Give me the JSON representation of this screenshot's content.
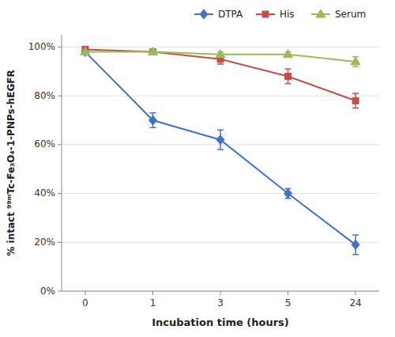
{
  "chart_data": {
    "type": "line",
    "xlabel": "Incubation time (hours)",
    "ylabel": "% intact ⁹⁹ᵐTc-Fe₃O₄-1-PNPs-hEGFR",
    "categories": [
      "0",
      "1",
      "3",
      "5",
      "24"
    ],
    "series": [
      {
        "name": "DTPA",
        "color": "#4472C4",
        "marker": "diamond",
        "values": [
          0.98,
          0.7,
          0.62,
          0.4,
          0.19
        ],
        "errors": [
          0.0,
          0.03,
          0.04,
          0.02,
          0.04
        ]
      },
      {
        "name": "His",
        "color": "#C0504D",
        "marker": "square",
        "values": [
          0.99,
          0.98,
          0.95,
          0.88,
          0.78
        ],
        "errors": [
          0.0,
          0.01,
          0.02,
          0.03,
          0.03
        ]
      },
      {
        "name": "Serum",
        "color": "#9BBB59",
        "marker": "triangle",
        "values": [
          0.98,
          0.98,
          0.97,
          0.97,
          0.94
        ],
        "errors": [
          0.0,
          0.01,
          0.01,
          0.01,
          0.02
        ]
      }
    ],
    "ylim": [
      0,
      1.05
    ],
    "yticks": [
      {
        "value": 0,
        "label": "0%"
      },
      {
        "value": 0.2,
        "label": "20%"
      },
      {
        "value": 0.4,
        "label": "40%"
      },
      {
        "value": 0.6,
        "label": "60%"
      },
      {
        "value": 0.8,
        "label": "80%"
      },
      {
        "value": 1.0,
        "label": "100%"
      }
    ],
    "grid": true,
    "legend": "upper right"
  }
}
